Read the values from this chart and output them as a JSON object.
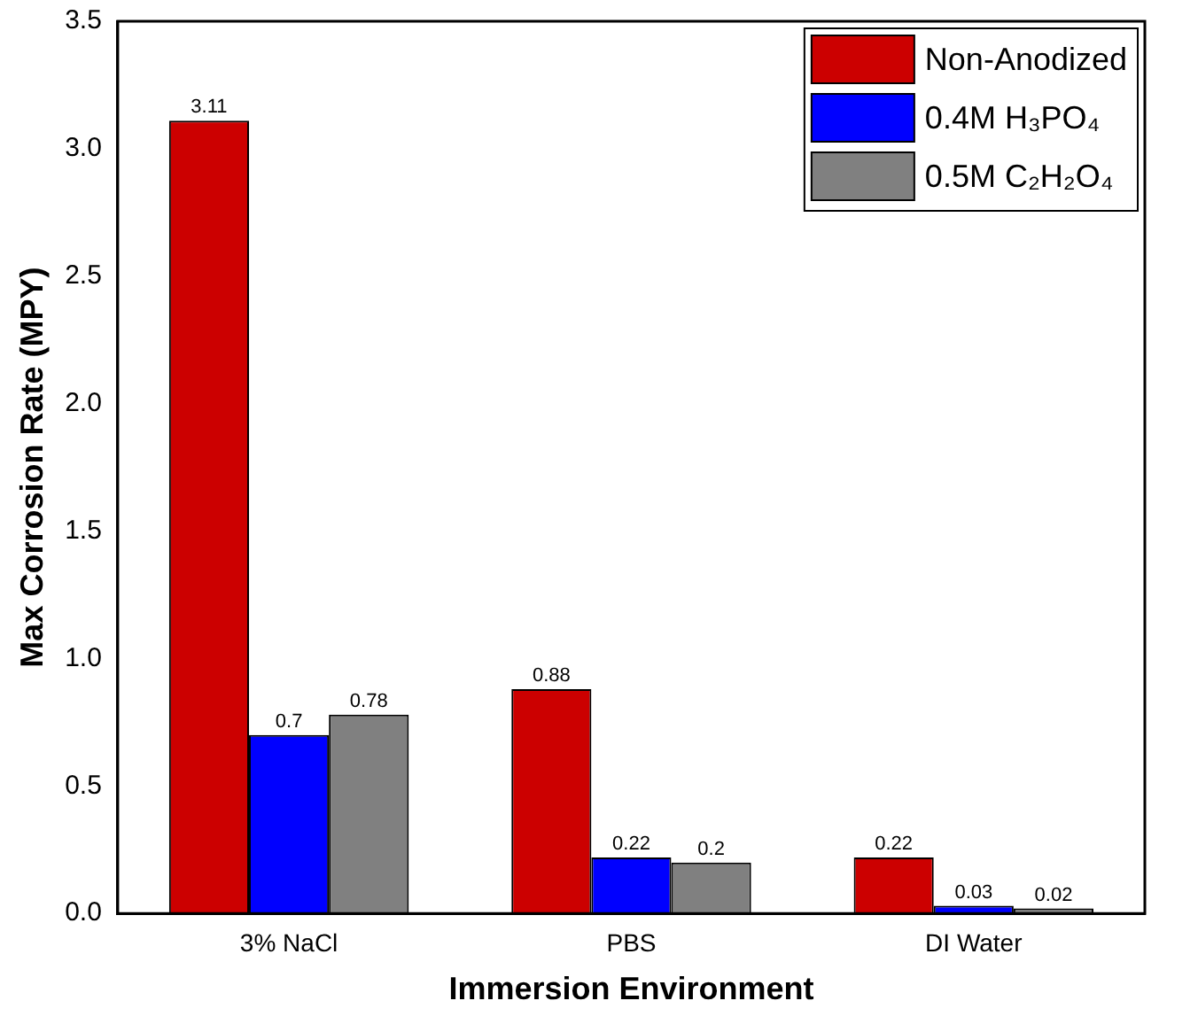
{
  "chart_data": {
    "type": "bar",
    "xlabel": "Immersion Environment",
    "ylabel": "Max Corrosion Rate (MPY)",
    "categories": [
      "3% NaCl",
      "PBS",
      "DI Water"
    ],
    "series": [
      {
        "name": "Non-Anodized",
        "color": "#cc0000",
        "values": [
          3.11,
          0.88,
          0.22
        ]
      },
      {
        "name": "0.4M H₃PO₄",
        "color": "#0000ff",
        "values": [
          0.7,
          0.22,
          0.03
        ]
      },
      {
        "name": "0.5M C₂H₂O₄",
        "color": "#808080",
        "values": [
          0.78,
          0.2,
          0.02
        ]
      }
    ],
    "ylim": [
      0,
      3.5
    ],
    "yticks": [
      {
        "value": 0,
        "label": "0.0"
      },
      {
        "value": 0.5,
        "label": "0.5"
      },
      {
        "value": 1,
        "label": "1.0"
      },
      {
        "value": 1.5,
        "label": "1.5"
      },
      {
        "value": 2,
        "label": "2.0"
      },
      {
        "value": 2.5,
        "label": "2.5"
      },
      {
        "value": 3,
        "label": "3.0"
      },
      {
        "value": 3.5,
        "label": "3.5"
      }
    ],
    "data_labels": true,
    "legend": "top right",
    "grid": false
  }
}
